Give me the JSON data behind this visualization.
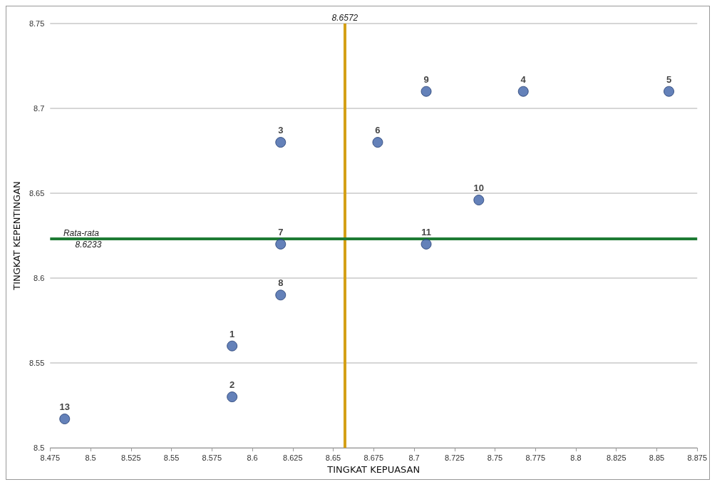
{
  "chart_data": {
    "type": "scatter",
    "xlabel": "TINGKAT KEPUASAN",
    "ylabel": "TINGKAT KEPENTINGAN",
    "x": [
      8.5875,
      8.5875,
      8.6175,
      8.7675,
      8.8575,
      8.6775,
      8.6175,
      8.6175,
      8.7075,
      8.74,
      8.7075,
      8.484
    ],
    "series": [
      {
        "color": "#3d62a8",
        "values": [
          8.56,
          8.53,
          8.68,
          8.71,
          8.71,
          8.68,
          8.62,
          8.59,
          8.71,
          8.646,
          8.62,
          8.517
        ]
      }
    ],
    "xlim": [
      8.475,
      8.875
    ],
    "xticks": [
      8.475,
      8.5,
      8.525,
      8.55,
      8.575,
      8.6,
      8.625,
      8.65,
      8.675,
      8.7,
      8.725,
      8.75,
      8.775,
      8.8,
      8.825,
      8.85,
      8.875
    ],
    "ylim": [
      8.5,
      8.75
    ],
    "yticks": [
      8.5,
      8.55,
      8.6,
      8.65,
      8.7,
      8.75
    ],
    "grid": "y",
    "marker": "circle",
    "ref_lines": [
      {
        "axis": "x",
        "value": 8.6572,
        "label": "8.6572",
        "color": "#d4a017"
      },
      {
        "axis": "y",
        "value": 8.6233,
        "label": "Rata-rata 8.6233",
        "color": "#1e7b34"
      }
    ],
    "annotations": [
      {
        "text": "1",
        "x": 8.5875,
        "y": 8.56
      },
      {
        "text": "2",
        "x": 8.5875,
        "y": 8.53
      },
      {
        "text": "3",
        "x": 8.6175,
        "y": 8.68
      },
      {
        "text": "4",
        "x": 8.7675,
        "y": 8.71
      },
      {
        "text": "5",
        "x": 8.8575,
        "y": 8.71
      },
      {
        "text": "6",
        "x": 8.6775,
        "y": 8.68
      },
      {
        "text": "7",
        "x": 8.6175,
        "y": 8.62
      },
      {
        "text": "8",
        "x": 8.6175,
        "y": 8.59
      },
      {
        "text": "9",
        "x": 8.7075,
        "y": 8.71
      },
      {
        "text": "10",
        "x": 8.74,
        "y": 8.646
      },
      {
        "text": "11",
        "x": 8.7075,
        "y": 8.62
      },
      {
        "text": "13",
        "x": 8.484,
        "y": 8.517
      }
    ]
  }
}
